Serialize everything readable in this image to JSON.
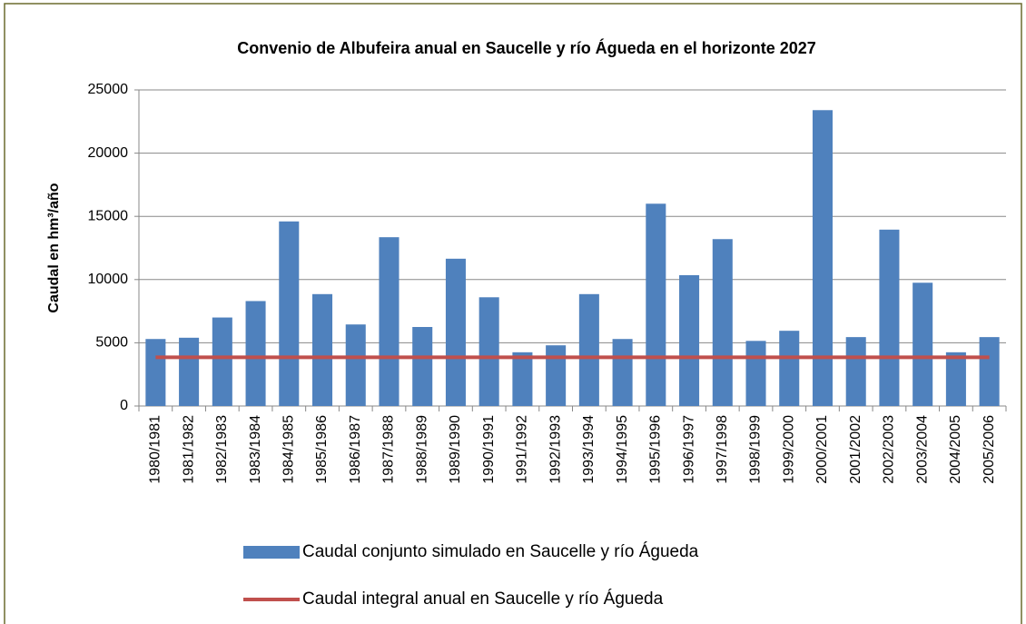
{
  "chart_data": {
    "type": "bar",
    "title": "Convenio de Albufeira anual en Saucelle y río Águeda en el horizonte 2027",
    "y_label": "Caudal en hm³/año",
    "categories": [
      "1980/1981",
      "1981/1982",
      "1982/1983",
      "1983/1984",
      "1984/1985",
      "1985/1986",
      "1986/1987",
      "1987/1988",
      "1988/1989",
      "1989/1990",
      "1990/1991",
      "1991/1992",
      "1992/1993",
      "1993/1994",
      "1994/1995",
      "1995/1996",
      "1996/1997",
      "1997/1998",
      "1998/1999",
      "1999/2000",
      "2000/2001",
      "2001/2002",
      "2002/2003",
      "2003/2004",
      "2004/2005",
      "2005/2006"
    ],
    "series": [
      {
        "name": "Caudal conjunto simulado en Saucelle y río Águeda",
        "type": "bar",
        "color": "#4f81bd",
        "values": [
          5300,
          5400,
          7000,
          8300,
          14600,
          8850,
          6450,
          13350,
          6250,
          11650,
          8600,
          4250,
          4800,
          8850,
          5300,
          16000,
          10350,
          13200,
          5150,
          5950,
          23400,
          5450,
          13950,
          9750,
          4250,
          5450
        ]
      },
      {
        "name": "Caudal integral anual en Saucelle y río Águeda",
        "type": "line",
        "color": "#c0504d",
        "values": [
          3850,
          3850,
          3850,
          3850,
          3850,
          3850,
          3850,
          3850,
          3850,
          3850,
          3850,
          3850,
          3850,
          3850,
          3850,
          3850,
          3850,
          3850,
          3850,
          3850,
          3850,
          3850,
          3850,
          3850,
          3850,
          3850
        ]
      }
    ],
    "ylim": [
      0,
      25000
    ],
    "yticks": [
      0,
      5000,
      10000,
      15000,
      20000,
      25000
    ],
    "grid": true
  }
}
